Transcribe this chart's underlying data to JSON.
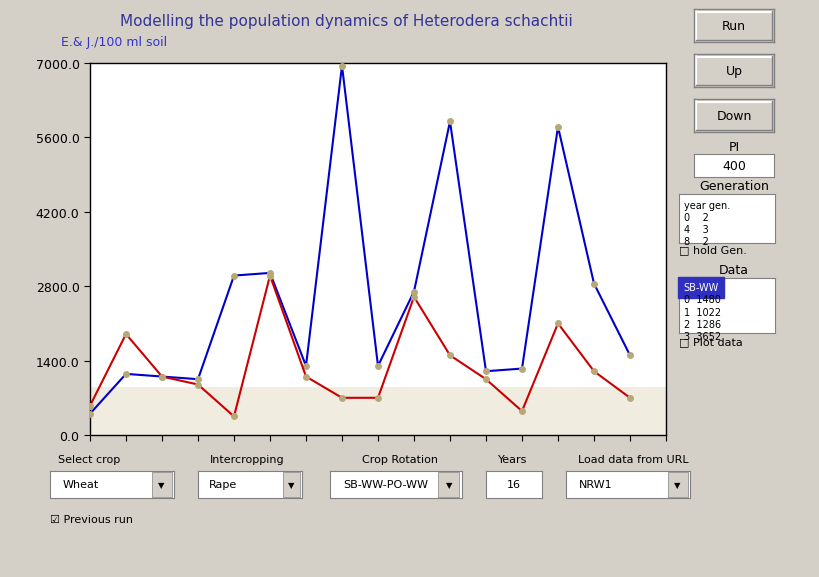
{
  "title": "Modelling the population dynamics of Heterodera schachtii",
  "ylabel": "E.& J./100 ml soil",
  "xlabel": "",
  "xlim": [
    0,
    16
  ],
  "ylim": [
    0,
    7000
  ],
  "yticks": [
    0.0,
    1400.0,
    2800.0,
    4200.0,
    5600.0,
    7000.0
  ],
  "xticks": [
    0,
    1,
    2,
    3,
    4,
    5,
    6,
    7,
    8,
    9,
    10,
    11,
    12,
    13,
    14,
    15,
    16
  ],
  "blue_x": [
    0,
    1,
    2,
    3,
    4,
    5,
    6,
    7,
    8,
    9,
    10,
    11,
    12,
    13,
    14,
    15
  ],
  "blue_y": [
    400,
    1150,
    1100,
    1050,
    3000,
    3050,
    1300,
    6950,
    1300,
    2700,
    5900,
    1200,
    1250,
    5800,
    2850,
    1500
  ],
  "red_x": [
    0,
    1,
    2,
    3,
    4,
    5,
    6,
    7,
    8,
    9,
    10,
    11,
    12,
    13,
    14,
    15
  ],
  "red_y": [
    550,
    1900,
    1100,
    950,
    350,
    3000,
    1100,
    700,
    700,
    2600,
    1500,
    1050,
    450,
    2100,
    1200,
    700
  ],
  "blue_color": "#0000cc",
  "red_color": "#cc0000",
  "marker_color": "#b8a878",
  "bg_color": "#f0ece0",
  "plot_bg": "#ffffff",
  "shaded_ymin": 0,
  "shaded_ymax": 900,
  "title_color": "#333399",
  "ylabel_color": "#3333cc",
  "ui_bg": "#d4d0c8"
}
